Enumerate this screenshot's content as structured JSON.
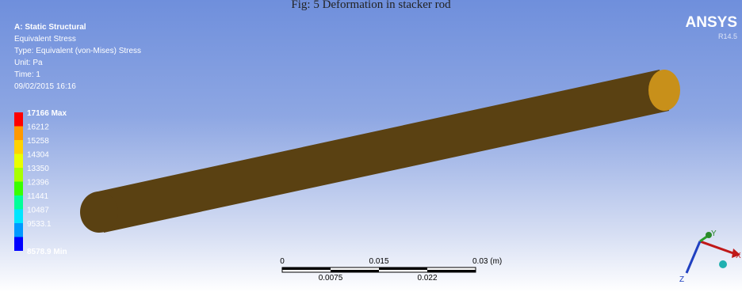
{
  "caption": "Fig: 5 Deformation in stacker rod",
  "header": {
    "analysis": "A: Static Structural",
    "result": "Equivalent Stress",
    "type": "Type: Equivalent (von-Mises) Stress",
    "unit": "Unit: Pa",
    "time": "Time: 1",
    "date": "09/02/2015 16:16"
  },
  "legend": {
    "labels": [
      "17166 Max",
      "16212",
      "15258",
      "14304",
      "13350",
      "12396",
      "11441",
      "10487",
      "9533.1",
      "8578.9 Min"
    ]
  },
  "scale_bar": {
    "top_labels": [
      "0",
      "0.015",
      "0.03 (m)"
    ],
    "bottom_labels": [
      "0.0075",
      "0.022"
    ]
  },
  "logo": {
    "brand": "ANSYS",
    "version": "R14.5"
  },
  "triad": {
    "x": "X",
    "y": "Y",
    "z": "Z"
  }
}
